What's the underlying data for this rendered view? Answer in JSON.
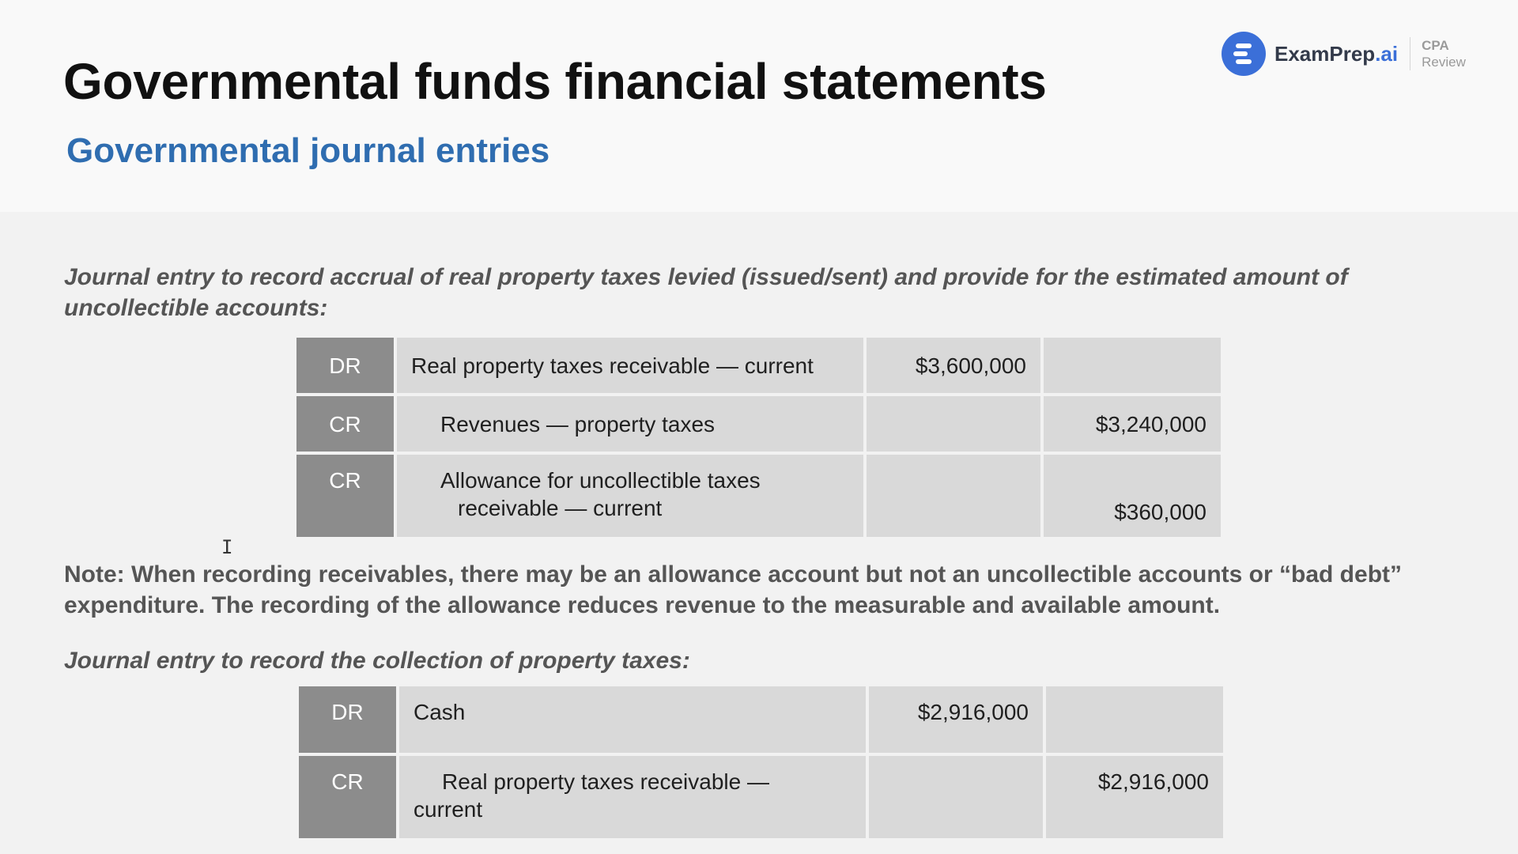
{
  "slide": {
    "title": "Governmental funds financial statements",
    "subtitle": "Governmental journal entries"
  },
  "logo": {
    "brand_main": "ExamPrep",
    "brand_suffix": ".ai",
    "tag_line1": "CPA",
    "tag_line2": "Review",
    "accent_color": "#3b6fd8"
  },
  "entry1": {
    "intro": "Journal entry to record accrual of real property taxes levied (issued/sent) and provide for the estimated amount of uncollectible accounts:",
    "rows": [
      {
        "side": "DR",
        "account": "Real property taxes receivable — current",
        "debit": "$3,600,000",
        "credit": ""
      },
      {
        "side": "CR",
        "account": "Revenues — property taxes",
        "debit": "",
        "credit": "$3,240,000"
      },
      {
        "side": "CR",
        "account_line1": "Allowance for uncollectible taxes",
        "account_line2": "receivable — current",
        "debit": "",
        "credit": "$360,000"
      }
    ]
  },
  "note": "Note: When recording receivables, there may be an allowance account but not an uncollectible accounts or “bad debt” expenditure. The recording of the allowance reduces revenue to the measurable and available amount.",
  "entry2": {
    "intro": "Journal entry to record the collection of property taxes:",
    "rows": [
      {
        "side": "DR",
        "account": "Cash",
        "debit": "$2,916,000",
        "credit": ""
      },
      {
        "side": "CR",
        "account_line1": "Real property taxes receivable —",
        "account_line2": "current",
        "debit": "",
        "credit": "$2,916,000"
      }
    ]
  },
  "colors": {
    "title": "#111111",
    "subtitle": "#2f6db0",
    "side_cell": "#8c8c8c",
    "cell": "#d9d9d9"
  }
}
